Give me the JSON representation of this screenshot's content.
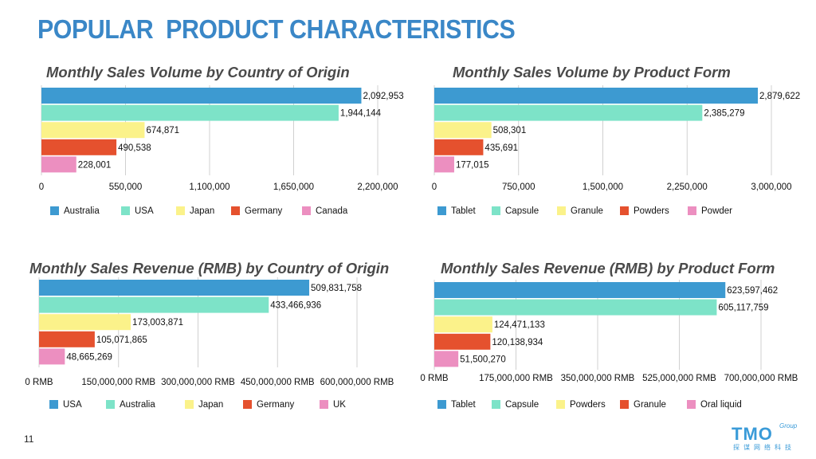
{
  "page": {
    "title": "POPULAR  PRODUCT CHARACTERISTICS",
    "page_number": "11"
  },
  "logo": {
    "main": "TMO",
    "group": "Group",
    "sub": "探谋网络科技"
  },
  "colors": {
    "title": "#3a87c7",
    "series": [
      "#3d9ad1",
      "#7de3c8",
      "#fbf28a",
      "#e5512e",
      "#ec8fc0"
    ]
  },
  "chart_data": [
    {
      "type": "bar",
      "orientation": "horizontal",
      "title": "Monthly Sales Volume by Country of Origin",
      "categories": [
        "Australia",
        "USA",
        "Japan",
        "Germany",
        "Canada"
      ],
      "values": [
        2092953,
        1944144,
        674871,
        490538,
        228001
      ],
      "value_labels": [
        "2,092,953",
        "1,944,144",
        "674,871",
        "490,538",
        "228,001"
      ],
      "xlim": [
        0,
        2200000
      ],
      "ticks": [
        0,
        550000,
        1100000,
        1650000,
        2200000
      ],
      "tick_labels": [
        "0",
        "550,000",
        "1,100,000",
        "1,650,000",
        "2,200,000"
      ],
      "legend_position": "bottom",
      "grid": true
    },
    {
      "type": "bar",
      "orientation": "horizontal",
      "title": "Monthly Sales Volume by Product Form",
      "categories": [
        "Tablet",
        "Capsule",
        "Granule",
        "Powders",
        "Powder"
      ],
      "values": [
        2879622,
        2385279,
        508301,
        435691,
        177015
      ],
      "value_labels": [
        "2,879,622",
        "2,385,279",
        "508,301",
        "435,691",
        "177,015"
      ],
      "xlim": [
        0,
        3000000
      ],
      "ticks": [
        0,
        750000,
        1500000,
        2250000,
        3000000
      ],
      "tick_labels": [
        "0",
        "750,000",
        "1,500,000",
        "2,250,000",
        "3,000,000"
      ],
      "legend_position": "bottom",
      "grid": true
    },
    {
      "type": "bar",
      "orientation": "horizontal",
      "title": "Monthly Sales Revenue (RMB) by Country of Origin",
      "categories": [
        "USA",
        "Australia",
        "Japan",
        "Germany",
        "UK"
      ],
      "values": [
        509831758,
        433466936,
        173003871,
        105071865,
        48665269
      ],
      "value_labels": [
        "509,831,758",
        "433,466,936",
        "173,003,871",
        "105,071,865",
        "48,665,269"
      ],
      "xlim": [
        0,
        600000000
      ],
      "ticks": [
        0,
        150000000,
        300000000,
        450000000,
        600000000
      ],
      "tick_labels": [
        "0 RMB",
        "150,000,000 RMB",
        "300,000,000 RMB",
        "450,000,000 RMB",
        "600,000,000 RMB"
      ],
      "legend_position": "bottom",
      "grid": true
    },
    {
      "type": "bar",
      "orientation": "horizontal",
      "title": "Monthly Sales Revenue (RMB) by Product Form",
      "categories": [
        "Tablet",
        "Capsule",
        "Powders",
        "Granule",
        "Oral liquid"
      ],
      "values": [
        623597462,
        605117759,
        124471133,
        120138934,
        51500270
      ],
      "value_labels": [
        "623,597,462",
        "605,117,759",
        "124,471,133",
        "120,138,934",
        "51,500,270"
      ],
      "xlim": [
        0,
        700000000
      ],
      "ticks": [
        0,
        175000000,
        350000000,
        525000000,
        700000000
      ],
      "tick_labels": [
        "0 RMB",
        "175,000,000 RMB",
        "350,000,000 RMB",
        "525,000,000 RMB",
        "700,000,000 RMB"
      ],
      "legend_position": "bottom",
      "grid": true
    }
  ]
}
